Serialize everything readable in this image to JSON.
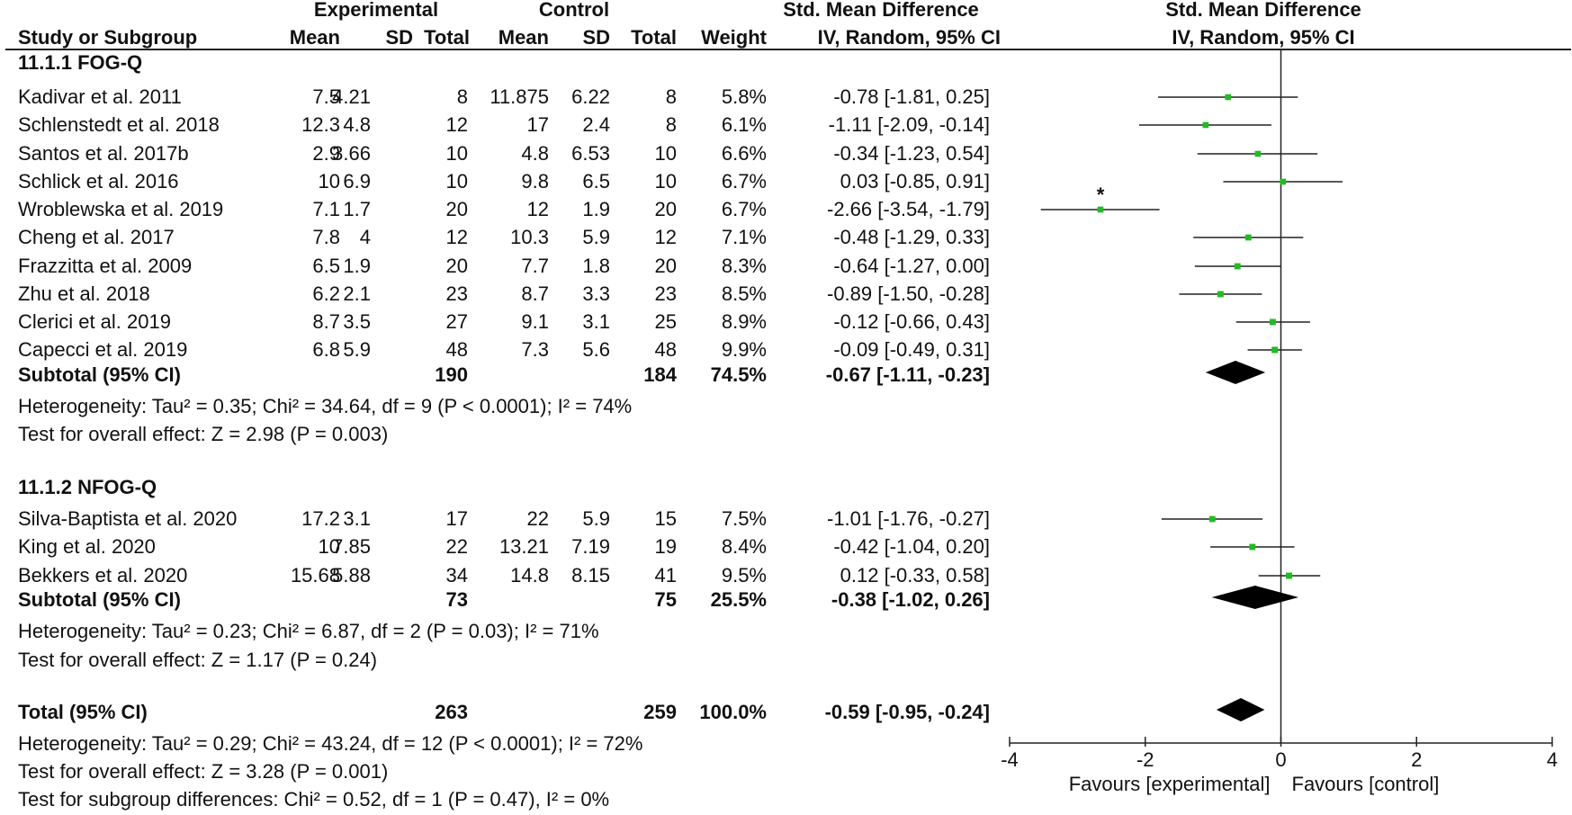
{
  "header": {
    "experimental": "Experimental",
    "control": "Control",
    "smd": "Std. Mean Difference",
    "plot_title": "Std. Mean Difference",
    "study": "Study or Subgroup",
    "mean_e": "Mean",
    "sd_e": "SD",
    "total_e": "Total",
    "mean_c": "Mean",
    "sd_c": "SD",
    "total_c": "Total",
    "weight": "Weight",
    "method": "IV, Random, 95% CI",
    "plot_method": "IV, Random, 95% CI"
  },
  "groups": [
    {
      "title": "11.1.1 FOG-Q",
      "studies": [
        {
          "name": "Kadivar et al. 2011",
          "mean_e": "7.5",
          "sd_e": "4.21",
          "total_e": "8",
          "mean_c": "11.875",
          "sd_c": "6.22",
          "total_c": "8",
          "weight": "5.8%",
          "ci": "-0.78 [-1.81, 0.25]"
        },
        {
          "name": "Schlenstedt et al. 2018",
          "mean_e": "12.3",
          "sd_e": "4.8",
          "total_e": "12",
          "mean_c": "17",
          "sd_c": "2.4",
          "total_c": "8",
          "weight": "6.1%",
          "ci": "-1.11 [-2.09, -0.14]"
        },
        {
          "name": "Santos et al. 2017b",
          "mean_e": "2.9",
          "sd_e": "3.66",
          "total_e": "10",
          "mean_c": "4.8",
          "sd_c": "6.53",
          "total_c": "10",
          "weight": "6.6%",
          "ci": "-0.34 [-1.23, 0.54]"
        },
        {
          "name": "Schlick et al. 2016",
          "mean_e": "10",
          "sd_e": "6.9",
          "total_e": "10",
          "mean_c": "9.8",
          "sd_c": "6.5",
          "total_c": "10",
          "weight": "6.7%",
          "ci": "0.03 [-0.85, 0.91]"
        },
        {
          "name": "Wroblewska et al. 2019",
          "mean_e": "7.1",
          "sd_e": "1.7",
          "total_e": "20",
          "mean_c": "12",
          "sd_c": "1.9",
          "total_c": "20",
          "weight": "6.7%",
          "ci": "-2.66 [-3.54, -1.79]"
        },
        {
          "name": "Cheng et al. 2017",
          "mean_e": "7.8",
          "sd_e": "4",
          "total_e": "12",
          "mean_c": "10.3",
          "sd_c": "5.9",
          "total_c": "12",
          "weight": "7.1%",
          "ci": "-0.48 [-1.29, 0.33]"
        },
        {
          "name": "Frazzitta et al. 2009",
          "mean_e": "6.5",
          "sd_e": "1.9",
          "total_e": "20",
          "mean_c": "7.7",
          "sd_c": "1.8",
          "total_c": "20",
          "weight": "8.3%",
          "ci": "-0.64 [-1.27, 0.00]"
        },
        {
          "name": "Zhu et al. 2018",
          "mean_e": "6.2",
          "sd_e": "2.1",
          "total_e": "23",
          "mean_c": "8.7",
          "sd_c": "3.3",
          "total_c": "23",
          "weight": "8.5%",
          "ci": "-0.89 [-1.50, -0.28]"
        },
        {
          "name": "Clerici et al. 2019",
          "mean_e": "8.7",
          "sd_e": "3.5",
          "total_e": "27",
          "mean_c": "9.1",
          "sd_c": "3.1",
          "total_c": "25",
          "weight": "8.9%",
          "ci": "-0.12 [-0.66, 0.43]"
        },
        {
          "name": "Capecci et al. 2019",
          "mean_e": "6.8",
          "sd_e": "5.9",
          "total_e": "48",
          "mean_c": "7.3",
          "sd_c": "5.6",
          "total_c": "48",
          "weight": "9.9%",
          "ci": "-0.09 [-0.49, 0.31]"
        }
      ],
      "subtotal": {
        "label": "Subtotal (95% CI)",
        "total_e": "190",
        "total_c": "184",
        "weight": "74.5%",
        "ci": "-0.67 [-1.11, -0.23]"
      },
      "heterogeneity": "Heterogeneity: Tau² = 0.35; Chi² = 34.64, df = 9 (P < 0.0001); I² = 74%",
      "overall": "Test for overall effect: Z = 2.98 (P = 0.003)"
    },
    {
      "title": "11.1.2 NFOG-Q",
      "studies": [
        {
          "name": "Silva-Baptista et al. 2020",
          "mean_e": "17.2",
          "sd_e": "3.1",
          "total_e": "17",
          "mean_c": "22",
          "sd_c": "5.9",
          "total_c": "15",
          "weight": "7.5%",
          "ci": "-1.01 [-1.76, -0.27]"
        },
        {
          "name": "King et al. 2020",
          "mean_e": "10",
          "sd_e": "7.85",
          "total_e": "22",
          "mean_c": "13.21",
          "sd_c": "7.19",
          "total_c": "19",
          "weight": "8.4%",
          "ci": "-0.42 [-1.04, 0.20]"
        },
        {
          "name": "Bekkers et al. 2020",
          "mean_e": "15.68",
          "sd_e": "5.88",
          "total_e": "34",
          "mean_c": "14.8",
          "sd_c": "8.15",
          "total_c": "41",
          "weight": "9.5%",
          "ci": "0.12 [-0.33, 0.58]"
        }
      ],
      "subtotal": {
        "label": "Subtotal (95% CI)",
        "total_e": "73",
        "total_c": "75",
        "weight": "25.5%",
        "ci": "-0.38 [-1.02, 0.26]"
      },
      "heterogeneity": "Heterogeneity: Tau² = 0.23; Chi² = 6.87, df = 2 (P = 0.03); I² = 71%",
      "overall": "Test for overall effect: Z = 1.17 (P = 0.24)"
    }
  ],
  "total": {
    "label": "Total (95% CI)",
    "total_e": "263",
    "total_c": "259",
    "weight": "100.0%",
    "ci": "-0.59 [-0.95, -0.24]"
  },
  "footer": {
    "heterogeneity": "Heterogeneity: Tau² = 0.29; Chi² = 43.24, df = 12 (P < 0.0001); I² = 72%",
    "overall": "Test for overall effect: Z = 3.28 (P = 0.001)",
    "subgroup": "Test for subgroup differences: Chi² = 0.52, df = 1 (P = 0.47), I² = 0%"
  },
  "colors": {
    "marker": "#22bb22",
    "diamond": "#000000",
    "line": "#222222"
  },
  "chart_data": {
    "type": "forest",
    "title": "Std. Mean Difference",
    "subtitle": "IV, Random, 95% CI",
    "xlim": [
      -4,
      4
    ],
    "ticks": [
      -4,
      -2,
      0,
      2,
      4
    ],
    "tick_labels": [
      "-4",
      "-2",
      "0",
      "2",
      "4"
    ],
    "favours_left": "Favours [experimental]",
    "favours_right": "Favours [control]",
    "annotation": {
      "text": "*",
      "study": "Wroblewska et al. 2019"
    },
    "studies": [
      {
        "name": "Kadivar et al. 2011",
        "est": -0.78,
        "lo": -1.81,
        "hi": 0.25,
        "weight": 5.8
      },
      {
        "name": "Schlenstedt et al. 2018",
        "est": -1.11,
        "lo": -2.09,
        "hi": -0.14,
        "weight": 6.1
      },
      {
        "name": "Santos et al. 2017b",
        "est": -0.34,
        "lo": -1.23,
        "hi": 0.54,
        "weight": 6.6
      },
      {
        "name": "Schlick et al. 2016",
        "est": 0.03,
        "lo": -0.85,
        "hi": 0.91,
        "weight": 6.7
      },
      {
        "name": "Wroblewska et al. 2019",
        "est": -2.66,
        "lo": -3.54,
        "hi": -1.79,
        "weight": 6.7
      },
      {
        "name": "Cheng et al. 2017",
        "est": -0.48,
        "lo": -1.29,
        "hi": 0.33,
        "weight": 7.1
      },
      {
        "name": "Frazzitta et al. 2009",
        "est": -0.64,
        "lo": -1.27,
        "hi": 0.0,
        "weight": 8.3
      },
      {
        "name": "Zhu et al. 2018",
        "est": -0.89,
        "lo": -1.5,
        "hi": -0.28,
        "weight": 8.5
      },
      {
        "name": "Clerici et al. 2019",
        "est": -0.12,
        "lo": -0.66,
        "hi": 0.43,
        "weight": 8.9
      },
      {
        "name": "Capecci et al. 2019",
        "est": -0.09,
        "lo": -0.49,
        "hi": 0.31,
        "weight": 9.9
      },
      {
        "name": "Silva-Baptista et al. 2020",
        "est": -1.01,
        "lo": -1.76,
        "hi": -0.27,
        "weight": 7.5
      },
      {
        "name": "King et al. 2020",
        "est": -0.42,
        "lo": -1.04,
        "hi": 0.2,
        "weight": 8.4
      },
      {
        "name": "Bekkers et al. 2020",
        "est": 0.12,
        "lo": -0.33,
        "hi": 0.58,
        "weight": 9.5
      }
    ],
    "pooled": [
      {
        "name": "Subtotal 11.1.1 FOG-Q",
        "est": -0.67,
        "lo": -1.11,
        "hi": -0.23
      },
      {
        "name": "Subtotal 11.1.2 NFOG-Q",
        "est": -0.38,
        "lo": -1.02,
        "hi": 0.26
      },
      {
        "name": "Total",
        "est": -0.59,
        "lo": -0.95,
        "hi": -0.24
      }
    ]
  }
}
